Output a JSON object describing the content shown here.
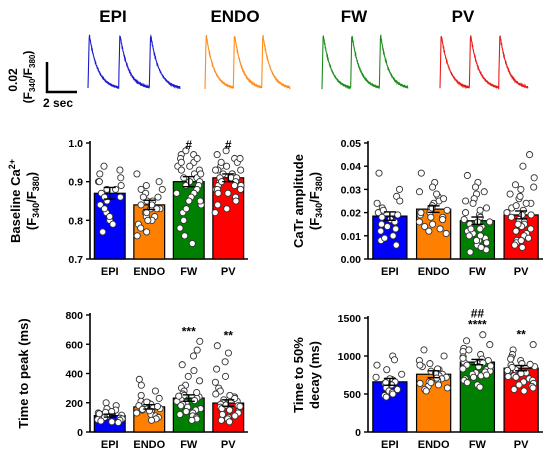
{
  "traces": {
    "labels": [
      "EPI",
      "ENDO",
      "FW",
      "PV"
    ],
    "colors": [
      "#1a1acc",
      "#ff8c1a",
      "#1a8c1a",
      "#e61919"
    ],
    "scale_y_value": "0.02",
    "scale_y_unit": "(F",
    "scale_y_sub1": "340",
    "scale_y_slash": "/F",
    "scale_y_sub2": "380",
    "scale_y_close": ")",
    "scale_x": "2 sec"
  },
  "chart_data": [
    {
      "type": "bar",
      "id": "baseline",
      "ylabel_line1": "Baseline Ca",
      "ylabel_sup": "2+",
      "ylabel_line2": "(F340/F380)",
      "categories": [
        "EPI",
        "ENDO",
        "FW",
        "PV"
      ],
      "colors": [
        "#0000ff",
        "#ff8000",
        "#008000",
        "#ff0000"
      ],
      "values": [
        0.87,
        0.84,
        0.9,
        0.91
      ],
      "sem": [
        0.015,
        0.012,
        0.013,
        0.01
      ],
      "ylim": [
        0.7,
        1.0
      ],
      "yticks": [
        "0.7",
        "0.8",
        "0.9",
        "1.0"
      ],
      "yticks_val": [
        0.7,
        0.8,
        0.9,
        1.0
      ],
      "annotations": [
        "",
        "",
        "#",
        "#"
      ],
      "points": [
        [
          0.93,
          0.91,
          0.9,
          0.88,
          0.86,
          0.84,
          0.82,
          0.8,
          0.79,
          0.77,
          0.92,
          0.89,
          0.85,
          0.87,
          0.81,
          0.94,
          0.9,
          0.88,
          0.83,
          0.86
        ],
        [
          0.92,
          0.9,
          0.88,
          0.86,
          0.85,
          0.84,
          0.83,
          0.82,
          0.81,
          0.8,
          0.79,
          0.78,
          0.77,
          0.76,
          0.88,
          0.87,
          0.85,
          0.84,
          0.83,
          0.86,
          0.81,
          0.8,
          0.89,
          0.83,
          0.82
        ],
        [
          0.98,
          0.97,
          0.96,
          0.95,
          0.94,
          0.93,
          0.92,
          0.91,
          0.9,
          0.89,
          0.88,
          0.87,
          0.86,
          0.85,
          0.84,
          0.82,
          0.8,
          0.78,
          0.76,
          0.74,
          0.97,
          0.95,
          0.93,
          0.92,
          0.91,
          0.9,
          0.89,
          0.87,
          0.85,
          0.83,
          0.96,
          0.94
        ],
        [
          0.98,
          0.97,
          0.96,
          0.95,
          0.94,
          0.93,
          0.93,
          0.92,
          0.92,
          0.91,
          0.91,
          0.9,
          0.9,
          0.89,
          0.89,
          0.88,
          0.88,
          0.87,
          0.86,
          0.85,
          0.84,
          0.83,
          0.82,
          0.95,
          0.94,
          0.93,
          0.92,
          0.91,
          0.9,
          0.89,
          0.88,
          0.87,
          0.96
        ]
      ]
    },
    {
      "type": "bar",
      "id": "amplitude",
      "ylabel_line1": "CaTr amplitude",
      "ylabel_sup": "",
      "ylabel_line2": "(F340/F380)",
      "categories": [
        "EPI",
        "ENDO",
        "FW",
        "PV"
      ],
      "colors": [
        "#0000ff",
        "#ff8000",
        "#008000",
        "#ff0000"
      ],
      "values": [
        0.0185,
        0.0215,
        0.0165,
        0.019
      ],
      "sem": [
        0.0018,
        0.0014,
        0.0016,
        0.0017
      ],
      "ylim": [
        0.0,
        0.05
      ],
      "yticks": [
        "0.00",
        "0.01",
        "0.02",
        "0.03",
        "0.04",
        "0.05"
      ],
      "yticks_val": [
        0.0,
        0.01,
        0.02,
        0.03,
        0.04,
        0.05
      ],
      "annotations": [
        "",
        "",
        "",
        ""
      ],
      "points": [
        [
          0.037,
          0.03,
          0.027,
          0.024,
          0.022,
          0.02,
          0.019,
          0.018,
          0.017,
          0.016,
          0.015,
          0.014,
          0.012,
          0.01,
          0.008,
          0.006,
          0.025,
          0.021,
          0.013,
          0.009
        ],
        [
          0.037,
          0.033,
          0.031,
          0.029,
          0.027,
          0.025,
          0.024,
          0.023,
          0.022,
          0.021,
          0.02,
          0.019,
          0.018,
          0.017,
          0.016,
          0.015,
          0.014,
          0.013,
          0.012,
          0.011,
          0.028,
          0.026,
          0.022,
          0.02,
          0.018
        ],
        [
          0.036,
          0.033,
          0.031,
          0.028,
          0.026,
          0.024,
          0.022,
          0.02,
          0.019,
          0.018,
          0.017,
          0.016,
          0.015,
          0.014,
          0.013,
          0.012,
          0.011,
          0.01,
          0.009,
          0.008,
          0.007,
          0.006,
          0.005,
          0.004,
          0.029,
          0.025,
          0.021,
          0.016,
          0.013,
          0.01,
          0.008,
          0.005,
          0.003
        ],
        [
          0.045,
          0.04,
          0.035,
          0.032,
          0.03,
          0.028,
          0.026,
          0.024,
          0.022,
          0.021,
          0.02,
          0.019,
          0.018,
          0.017,
          0.016,
          0.015,
          0.014,
          0.013,
          0.012,
          0.011,
          0.01,
          0.009,
          0.008,
          0.007,
          0.006,
          0.031,
          0.027,
          0.023,
          0.019,
          0.015,
          0.012,
          0.008,
          0.005,
          0.024
        ]
      ]
    },
    {
      "type": "bar",
      "id": "ttp",
      "ylabel_line1": "Time to peak (ms)",
      "ylabel_sup": "",
      "ylabel_line2": "",
      "categories": [
        "EPI",
        "ENDO",
        "FW",
        "PV"
      ],
      "colors": [
        "#0000ff",
        "#ff8000",
        "#008000",
        "#ff0000"
      ],
      "values": [
        112,
        172,
        232,
        198
      ],
      "sem": [
        10,
        15,
        22,
        22
      ],
      "ylim": [
        0,
        800
      ],
      "yticks": [
        "0",
        "200",
        "400",
        "600",
        "800"
      ],
      "yticks_val": [
        0,
        200,
        400,
        600,
        800
      ],
      "annotations": [
        "",
        "",
        "***",
        "**"
      ],
      "points": [
        [
          200,
          180,
          160,
          150,
          140,
          130,
          120,
          115,
          110,
          105,
          100,
          95,
          90,
          85,
          80,
          75,
          70,
          65,
          125,
          135
        ],
        [
          360,
          320,
          280,
          250,
          230,
          210,
          200,
          190,
          180,
          170,
          165,
          160,
          150,
          140,
          130,
          120,
          110,
          100,
          90,
          80,
          175,
          155,
          145,
          195,
          205
        ],
        [
          620,
          560,
          520,
          460,
          420,
          380,
          350,
          320,
          300,
          280,
          260,
          250,
          240,
          230,
          220,
          210,
          200,
          190,
          180,
          170,
          160,
          150,
          140,
          130,
          120,
          110,
          100,
          90,
          80,
          270,
          245,
          215
        ],
        [
          590,
          540,
          480,
          430,
          380,
          340,
          300,
          280,
          260,
          240,
          220,
          210,
          200,
          190,
          180,
          170,
          160,
          150,
          140,
          130,
          120,
          110,
          100,
          90,
          80,
          70,
          250,
          230,
          185,
          175
        ]
      ]
    },
    {
      "type": "bar",
      "id": "decay",
      "ylabel_line1": "Time to 50%",
      "ylabel_sup": "",
      "ylabel_line2": "decay (ms)",
      "categories": [
        "EPI",
        "ENDO",
        "FW",
        "PV"
      ],
      "colors": [
        "#0000ff",
        "#ff8000",
        "#008000",
        "#ff0000"
      ],
      "values": [
        660,
        760,
        920,
        840
      ],
      "sem": [
        45,
        45,
        35,
        35
      ],
      "ylim": [
        0,
        1500
      ],
      "yticks": [
        "0",
        "500",
        "1000",
        "1500"
      ],
      "yticks_val": [
        0,
        500,
        1000,
        1500
      ],
      "annotations": [
        "",
        "",
        "##|****",
        "**"
      ],
      "points": [
        [
          1000,
          950,
          880,
          820,
          760,
          720,
          690,
          660,
          640,
          620,
          600,
          580,
          560,
          540,
          520,
          500,
          480,
          460,
          700,
          650
        ],
        [
          1080,
          1000,
          940,
          900,
          860,
          820,
          800,
          780,
          760,
          740,
          720,
          700,
          680,
          660,
          640,
          620,
          600,
          580,
          560,
          540,
          880,
          830,
          770,
          710,
          650
        ],
        [
          1280,
          1200,
          1150,
          1100,
          1060,
          1020,
          990,
          960,
          940,
          920,
          900,
          880,
          860,
          840,
          820,
          800,
          780,
          760,
          740,
          720,
          700,
          680,
          650,
          620,
          590,
          1080,
          970,
          910,
          870,
          830,
          790,
          750
        ],
        [
          1150,
          1080,
          1020,
          980,
          940,
          900,
          880,
          860,
          840,
          820,
          800,
          780,
          760,
          740,
          720,
          700,
          680,
          660,
          640,
          620,
          600,
          580,
          560,
          540,
          960,
          890,
          850,
          810,
          770,
          730
        ]
      ]
    }
  ]
}
